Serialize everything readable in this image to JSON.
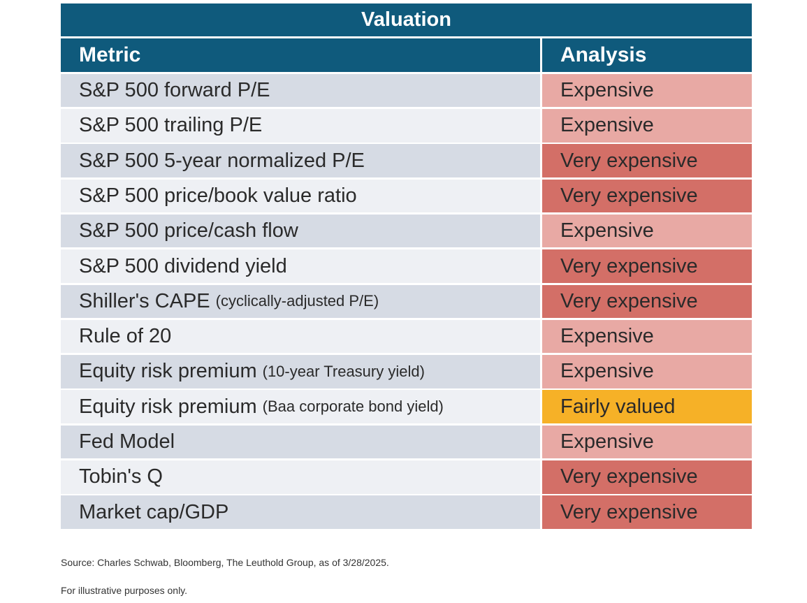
{
  "title": "Valuation",
  "columns": {
    "metric": "Metric",
    "analysis": "Analysis"
  },
  "rows": [
    {
      "metric": "S&P 500 forward P/E",
      "sub": "",
      "analysis": "Expensive",
      "level": "exp"
    },
    {
      "metric": "S&P 500 trailing P/E",
      "sub": "",
      "analysis": "Expensive",
      "level": "exp"
    },
    {
      "metric": "S&P 500 5-year normalized P/E",
      "sub": "",
      "analysis": "Very expensive",
      "level": "vexp"
    },
    {
      "metric": "S&P 500 price/book value ratio",
      "sub": "",
      "analysis": "Very expensive",
      "level": "vexp"
    },
    {
      "metric": "S&P 500 price/cash flow",
      "sub": "",
      "analysis": "Expensive",
      "level": "exp"
    },
    {
      "metric": "S&P 500 dividend yield",
      "sub": "",
      "analysis": "Very expensive",
      "level": "vexp"
    },
    {
      "metric": "Shiller's CAPE",
      "sub": "(cyclically-adjusted P/E)",
      "analysis": "Very expensive",
      "level": "vexp"
    },
    {
      "metric": "Rule of 20",
      "sub": "",
      "analysis": "Expensive",
      "level": "exp"
    },
    {
      "metric": "Equity risk premium",
      "sub": "(10-year Treasury yield)",
      "analysis": "Expensive",
      "level": "exp"
    },
    {
      "metric": "Equity risk premium",
      "sub": "(Baa corporate bond yield)",
      "analysis": "Fairly valued",
      "level": "fair"
    },
    {
      "metric": "Fed Model",
      "sub": "",
      "analysis": "Expensive",
      "level": "exp"
    },
    {
      "metric": "Tobin's Q",
      "sub": "",
      "analysis": "Very expensive",
      "level": "vexp"
    },
    {
      "metric": "Market cap/GDP",
      "sub": "",
      "analysis": "Very expensive",
      "level": "vexp"
    }
  ],
  "footnotes": {
    "source": "Source: Charles Schwab, Bloomberg, The Leuthold Group, as of 3/28/2025.",
    "disclaimer": "For illustrative purposes only."
  },
  "colors": {
    "header": "#0f5a7c",
    "expensive": "#e8a9a4",
    "very_expensive": "#d36f67",
    "fairly_valued": "#f6b127"
  }
}
